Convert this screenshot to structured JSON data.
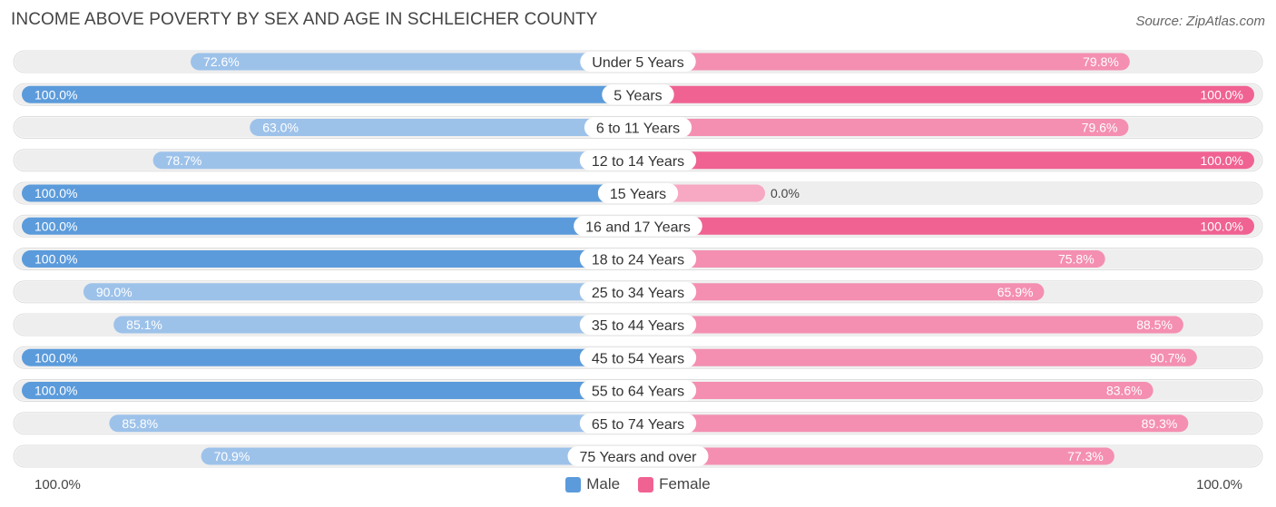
{
  "title": "INCOME ABOVE POVERTY BY SEX AND AGE IN SCHLEICHER COUNTY",
  "source": "Source: ZipAtlas.com",
  "axis_left_label": "100.0%",
  "axis_right_label": "100.0%",
  "colors": {
    "male": "#5b9bdb",
    "male_light": "#9dc2ea",
    "female": "#f06292",
    "female_light": "#f7a8c3",
    "track": "#eeeeee"
  },
  "legend": {
    "male_label": "Male",
    "female_label": "Female"
  },
  "chart_data": {
    "type": "bar",
    "orientation": "horizontal-diverging",
    "categories": [
      "Under 5 Years",
      "5 Years",
      "6 to 11 Years",
      "12 to 14 Years",
      "15 Years",
      "16 and 17 Years",
      "18 to 24 Years",
      "25 to 34 Years",
      "35 to 44 Years",
      "45 to 54 Years",
      "55 to 64 Years",
      "65 to 74 Years",
      "75 Years and over"
    ],
    "series": [
      {
        "name": "Male",
        "values": [
          72.6,
          100.0,
          63.0,
          78.7,
          100.0,
          100.0,
          100.0,
          90.0,
          85.1,
          100.0,
          100.0,
          85.8,
          70.9
        ],
        "labels": [
          "72.6%",
          "100.0%",
          "63.0%",
          "78.7%",
          "100.0%",
          "100.0%",
          "100.0%",
          "90.0%",
          "85.1%",
          "100.0%",
          "100.0%",
          "85.8%",
          "70.9%"
        ]
      },
      {
        "name": "Female",
        "values": [
          79.8,
          100.0,
          79.6,
          100.0,
          0.0,
          100.0,
          75.8,
          65.9,
          88.5,
          90.7,
          83.6,
          89.3,
          77.3
        ],
        "labels": [
          "79.8%",
          "100.0%",
          "79.6%",
          "100.0%",
          "0.0%",
          "100.0%",
          "75.8%",
          "65.9%",
          "88.5%",
          "90.7%",
          "83.6%",
          "89.3%",
          "77.3%"
        ]
      }
    ],
    "xlim": [
      0,
      100
    ],
    "title": "INCOME ABOVE POVERTY BY SEX AND AGE IN SCHLEICHER COUNTY",
    "legend": [
      "Male",
      "Female"
    ]
  }
}
